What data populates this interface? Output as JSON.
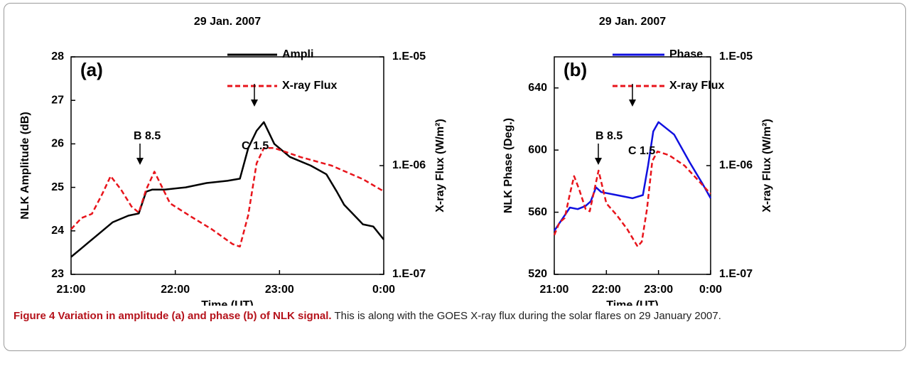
{
  "chart_data": [
    {
      "type": "line",
      "title": "29 Jan. 2007",
      "panel_label": "(a)",
      "xlabel": "Time (UT)",
      "ylabel": "NLK Amplitude (dB)",
      "y2label": "X-ray Flux (W/m²)",
      "xlim": [
        21,
        24
      ],
      "xticks": [
        {
          "value": 21,
          "label": "21:00"
        },
        {
          "value": 22,
          "label": "22:00"
        },
        {
          "value": 23,
          "label": "23:00"
        },
        {
          "value": 24,
          "label": "0:00"
        }
      ],
      "ylim": [
        23,
        28
      ],
      "yticks": [
        23,
        24,
        25,
        26,
        27,
        28
      ],
      "y2lim": [
        1e-07,
        1e-05
      ],
      "y2scale": "log",
      "y2ticks": [
        {
          "value": 1e-07,
          "label": "1.E-07"
        },
        {
          "value": 1e-06,
          "label": "1.E-06"
        },
        {
          "value": 1e-05,
          "label": "1.E-05"
        }
      ],
      "series": [
        {
          "name": "Ampli",
          "color": "#000000",
          "style": "solid",
          "axis": "y",
          "x": [
            21.0,
            21.1,
            21.25,
            21.4,
            21.55,
            21.65,
            21.72,
            21.78,
            21.9,
            22.1,
            22.3,
            22.5,
            22.62,
            22.7,
            22.78,
            22.85,
            22.95,
            23.1,
            23.3,
            23.45,
            23.55,
            23.62,
            23.7,
            23.8,
            23.9,
            24.0
          ],
          "values": [
            23.4,
            23.6,
            23.9,
            24.2,
            24.35,
            24.4,
            24.9,
            24.95,
            24.95,
            25.0,
            25.1,
            25.15,
            25.2,
            25.9,
            26.3,
            26.5,
            26.0,
            25.7,
            25.5,
            25.3,
            24.9,
            24.6,
            24.4,
            24.15,
            24.1,
            23.8
          ]
        },
        {
          "name": "X-ray Flux",
          "color": "#e8141b",
          "style": "dashed",
          "axis": "y2",
          "x": [
            21.0,
            21.1,
            21.2,
            21.3,
            21.38,
            21.48,
            21.58,
            21.65,
            21.72,
            21.8,
            21.95,
            22.15,
            22.35,
            22.55,
            22.62,
            22.7,
            22.78,
            22.85,
            22.95,
            23.2,
            23.5,
            23.8,
            24.0
          ],
          "values": [
            2.6e-07,
            3.3e-07,
            3.6e-07,
            5.5e-07,
            8e-07,
            6e-07,
            4.2e-07,
            3.7e-07,
            6e-07,
            8.8e-07,
            4.5e-07,
            3.4e-07,
            2.6e-07,
            1.9e-07,
            1.8e-07,
            3.5e-07,
            1.05e-06,
            1.45e-06,
            1.45e-06,
            1.2e-06,
            1e-06,
            7.5e-07,
            5.8e-07
          ]
        }
      ],
      "annotations": [
        "B 8.5",
        "C 1.5"
      ]
    },
    {
      "type": "line",
      "title": "29 Jan. 2007",
      "panel_label": "(b)",
      "xlabel": "Time (UT)",
      "ylabel": "NLK Phase (Deg.)",
      "y2label": "X-ray Flux (W/m²)",
      "xlim": [
        21,
        24
      ],
      "xticks": [
        {
          "value": 21,
          "label": "21:00"
        },
        {
          "value": 22,
          "label": "22:00"
        },
        {
          "value": 23,
          "label": "23:00"
        },
        {
          "value": 24,
          "label": "0:00"
        }
      ],
      "ylim": [
        520,
        660
      ],
      "yticks": [
        520,
        560,
        600,
        640
      ],
      "y2lim": [
        1e-07,
        1e-05
      ],
      "y2scale": "log",
      "y2ticks": [
        {
          "value": 1e-07,
          "label": "1.E-07"
        },
        {
          "value": 1e-06,
          "label": "1.E-06"
        },
        {
          "value": 1e-05,
          "label": "1.E-05"
        }
      ],
      "series": [
        {
          "name": "Phase",
          "color": "#1010e0",
          "style": "solid",
          "axis": "y",
          "x": [
            21.0,
            21.1,
            21.2,
            21.3,
            21.45,
            21.6,
            21.7,
            21.8,
            21.9,
            22.2,
            22.5,
            22.7,
            22.8,
            22.9,
            23.0,
            23.3,
            23.6,
            23.85,
            24.0
          ],
          "values": [
            548,
            553,
            558,
            563,
            562,
            564,
            567,
            576,
            573,
            571,
            569,
            571,
            590,
            612,
            618,
            610,
            592,
            578,
            569
          ]
        },
        {
          "name": "X-ray Flux",
          "color": "#e8141b",
          "style": "dashed",
          "axis": "y2",
          "x": [
            21.0,
            21.1,
            21.2,
            21.3,
            21.38,
            21.48,
            21.6,
            21.68,
            21.77,
            21.85,
            22.0,
            22.2,
            22.4,
            22.6,
            22.68,
            22.78,
            22.88,
            22.98,
            23.2,
            23.5,
            23.8,
            24.0
          ],
          "values": [
            2.3e-07,
            3e-07,
            3.3e-07,
            5.5e-07,
            8e-07,
            6e-07,
            4e-07,
            3.8e-07,
            6e-07,
            9e-07,
            4.5e-07,
            3.5e-07,
            2.6e-07,
            1.8e-07,
            2e-07,
            4e-07,
            1.1e-06,
            1.35e-06,
            1.25e-06,
            1e-06,
            7e-07,
            5.5e-07
          ]
        }
      ],
      "annotations": [
        "B 8.5",
        "C 1.5"
      ]
    }
  ],
  "caption": {
    "title": "Figure 4 Variation in amplitude (a) and phase (b) of NLK signal.",
    "text": "This is along with the GOES X-ray flux during the solar flares on 29 January 2007."
  }
}
